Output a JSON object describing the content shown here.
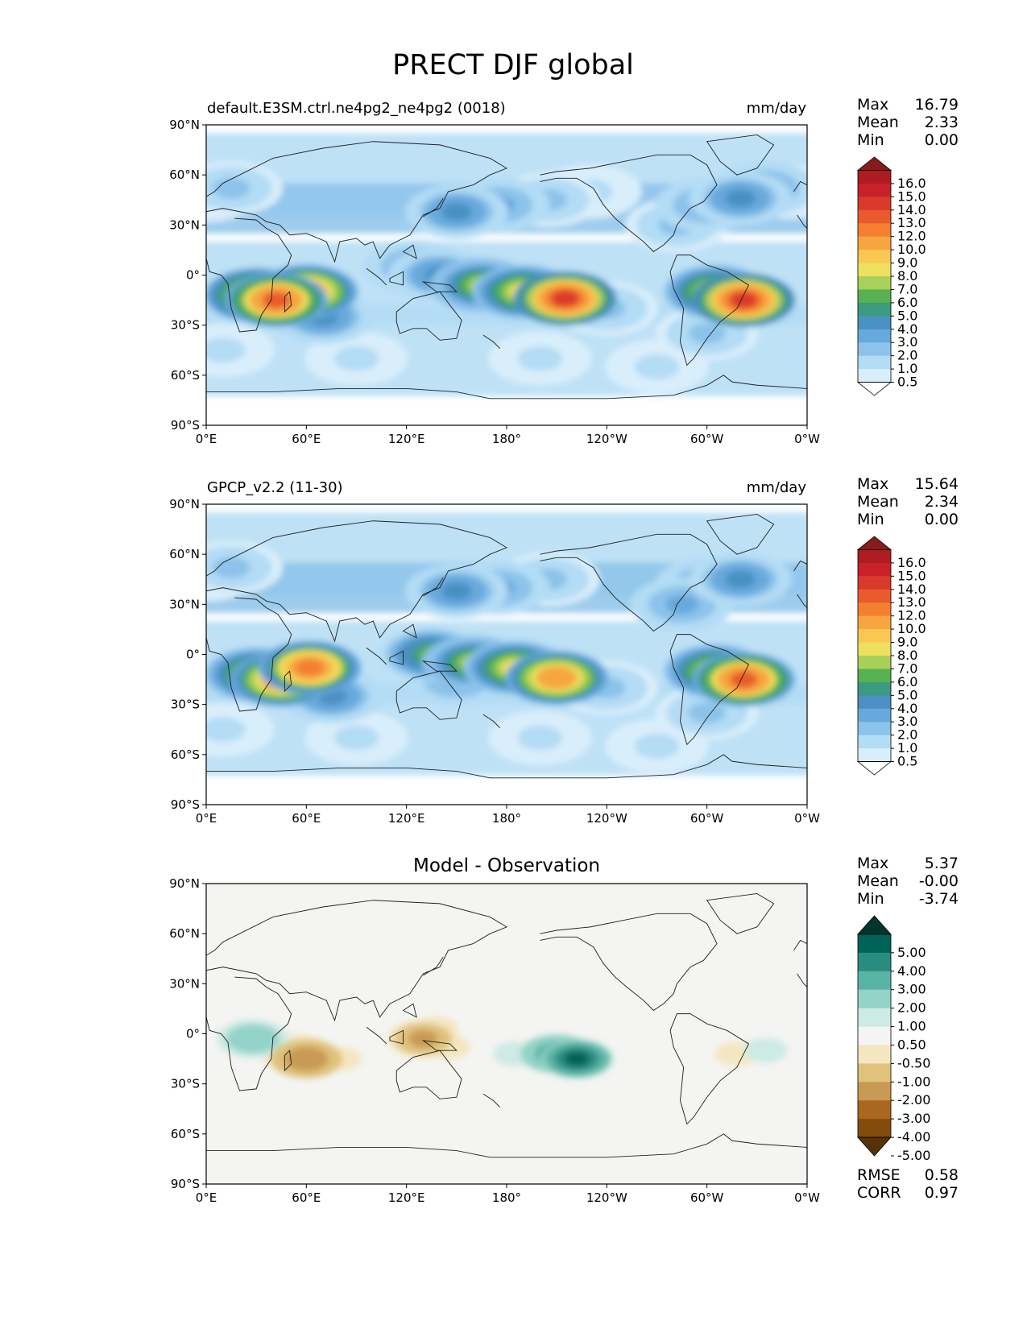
{
  "figure_title": "PRECT DJF global",
  "axes": {
    "lat_ticks": [
      "90°N",
      "60°N",
      "30°N",
      "0°",
      "30°S",
      "60°S",
      "90°S"
    ],
    "lon_ticks": [
      "0°E",
      "60°E",
      "120°E",
      "180°",
      "120°W",
      "60°W",
      "0°W"
    ]
  },
  "panels": [
    {
      "left_title": "default.E3SM.ctrl.ne4pg2_ne4pg2 (0018)",
      "center_title": "",
      "right_title": "mm/day",
      "stats": [
        {
          "label": "Max",
          "value": "16.79"
        },
        {
          "label": "Mean",
          "value": "2.33"
        },
        {
          "label": "Min",
          "value": "0.00"
        }
      ],
      "footer_stats": [],
      "colorbar": {
        "labels": [
          "16.0",
          "15.0",
          "14.0",
          "13.0",
          "12.0",
          "10.0",
          "9.0",
          "8.0",
          "7.0",
          "6.0",
          "5.0",
          "4.0",
          "3.0",
          "2.0",
          "1.0",
          "0.5"
        ],
        "colors": [
          "#8b1a1a",
          "#ad1c20",
          "#c8212a",
          "#da3a2b",
          "#ea5a2c",
          "#f47f30",
          "#f7a541",
          "#f9c853",
          "#ece05e",
          "#a8d05a",
          "#58b251",
          "#3c9a7e",
          "#4a90c2",
          "#67a9dd",
          "#8cc3ea",
          "#b3dcf5",
          "#d9eefb",
          "#ffffff"
        ]
      },
      "blobs": [
        {
          "lon": 0,
          "lat": 48,
          "value": 2
        },
        {
          "lon": 15,
          "lat": 52,
          "value": 3
        },
        {
          "lon": 350,
          "lat": 50,
          "value": 2
        },
        {
          "lon": 300,
          "lat": 42,
          "value": 4
        },
        {
          "lon": 320,
          "lat": 46,
          "value": 5
        },
        {
          "lon": 335,
          "lat": 52,
          "value": 4
        },
        {
          "lon": 282,
          "lat": 30,
          "value": 3
        },
        {
          "lon": 150,
          "lat": 38,
          "value": 5
        },
        {
          "lon": 175,
          "lat": 42,
          "value": 4
        },
        {
          "lon": 205,
          "lat": 45,
          "value": 3
        },
        {
          "lon": 230,
          "lat": 50,
          "value": 2
        },
        {
          "lon": 190,
          "lat": -10,
          "value": 10
        },
        {
          "lon": 215,
          "lat": -14,
          "value": 16
        },
        {
          "lon": 165,
          "lat": -6,
          "value": 8
        },
        {
          "lon": 140,
          "lat": 0,
          "value": 5
        },
        {
          "lon": 125,
          "lat": 5,
          "value": 4
        },
        {
          "lon": 240,
          "lat": -20,
          "value": 3
        },
        {
          "lon": 60,
          "lat": -10,
          "value": 13
        },
        {
          "lon": 42,
          "lat": -15,
          "value": 15
        },
        {
          "lon": 30,
          "lat": -12,
          "value": 12
        },
        {
          "lon": 70,
          "lat": -25,
          "value": 5
        },
        {
          "lon": 322,
          "lat": -15,
          "value": 16
        },
        {
          "lon": 305,
          "lat": -10,
          "value": 10
        },
        {
          "lon": 300,
          "lat": -35,
          "value": 3
        },
        {
          "lon": 90,
          "lat": -50,
          "value": 2
        },
        {
          "lon": 200,
          "lat": -50,
          "value": 2
        },
        {
          "lon": 10,
          "lat": -45,
          "value": 2
        },
        {
          "lon": 270,
          "lat": -55,
          "value": 2
        }
      ]
    },
    {
      "left_title": "GPCP_v2.2 (11-30)",
      "center_title": "",
      "right_title": "mm/day",
      "stats": [
        {
          "label": "Max",
          "value": "15.64"
        },
        {
          "label": "Mean",
          "value": "2.34"
        },
        {
          "label": "Min",
          "value": "0.00"
        }
      ],
      "footer_stats": [],
      "colorbar": {
        "labels": [
          "16.0",
          "15.0",
          "14.0",
          "13.0",
          "12.0",
          "10.0",
          "9.0",
          "8.0",
          "7.0",
          "6.0",
          "5.0",
          "4.0",
          "3.0",
          "2.0",
          "1.0",
          "0.5"
        ],
        "colors": [
          "#8b1a1a",
          "#ad1c20",
          "#c8212a",
          "#da3a2b",
          "#ea5a2c",
          "#f47f30",
          "#f7a541",
          "#f9c853",
          "#ece05e",
          "#a8d05a",
          "#58b251",
          "#3c9a7e",
          "#4a90c2",
          "#67a9dd",
          "#8cc3ea",
          "#b3dcf5",
          "#d9eefb",
          "#ffffff"
        ]
      },
      "blobs": [
        {
          "lon": 0,
          "lat": 48,
          "value": 2
        },
        {
          "lon": 15,
          "lat": 52,
          "value": 3
        },
        {
          "lon": 300,
          "lat": 42,
          "value": 4
        },
        {
          "lon": 320,
          "lat": 45,
          "value": 5
        },
        {
          "lon": 285,
          "lat": 30,
          "value": 4
        },
        {
          "lon": 150,
          "lat": 38,
          "value": 5
        },
        {
          "lon": 175,
          "lat": 40,
          "value": 4
        },
        {
          "lon": 205,
          "lat": 45,
          "value": 3
        },
        {
          "lon": 185,
          "lat": -8,
          "value": 9
        },
        {
          "lon": 210,
          "lat": -14,
          "value": 13
        },
        {
          "lon": 160,
          "lat": -5,
          "value": 8
        },
        {
          "lon": 135,
          "lat": 0,
          "value": 7
        },
        {
          "lon": 150,
          "lat": -15,
          "value": 4
        },
        {
          "lon": 240,
          "lat": -20,
          "value": 3
        },
        {
          "lon": 62,
          "lat": -8,
          "value": 14
        },
        {
          "lon": 45,
          "lat": -15,
          "value": 13
        },
        {
          "lon": 30,
          "lat": -12,
          "value": 10
        },
        {
          "lon": 75,
          "lat": -25,
          "value": 5
        },
        {
          "lon": 322,
          "lat": -15,
          "value": 15
        },
        {
          "lon": 305,
          "lat": -10,
          "value": 9
        },
        {
          "lon": 300,
          "lat": -35,
          "value": 3
        },
        {
          "lon": 90,
          "lat": -50,
          "value": 2
        },
        {
          "lon": 200,
          "lat": -50,
          "value": 2
        },
        {
          "lon": 10,
          "lat": -45,
          "value": 2
        },
        {
          "lon": 270,
          "lat": -55,
          "value": 2
        }
      ]
    },
    {
      "left_title": "",
      "center_title": "Model - Observation",
      "right_title": "",
      "stats": [
        {
          "label": "Max",
          "value": "5.37"
        },
        {
          "label": "Mean",
          "value": "-0.00"
        },
        {
          "label": "Min",
          "value": "-3.74"
        }
      ],
      "footer_stats": [
        {
          "label": "RMSE",
          "value": "0.58"
        },
        {
          "label": "CORR",
          "value": "0.97"
        }
      ],
      "colorbar": {
        "labels": [
          "5.00",
          "4.00",
          "3.00",
          "2.00",
          "1.00",
          "0.50",
          "-0.50",
          "-1.00",
          "-2.00",
          "-3.00",
          "-4.00",
          "-5.00"
        ],
        "colors": [
          "#01362c",
          "#016355",
          "#2a8c80",
          "#5ab4a6",
          "#93d3c8",
          "#cdeae4",
          "#f4f4f2",
          "#f4e6c0",
          "#dfc27c",
          "#c99a55",
          "#a9681e",
          "#844b0f",
          "#573208"
        ]
      },
      "blobs": [
        {
          "lon": 210,
          "lat": -12,
          "value": 3
        },
        {
          "lon": 222,
          "lat": -15,
          "value": 5
        },
        {
          "lon": 185,
          "lat": -12,
          "value": 1
        },
        {
          "lon": 28,
          "lat": -3,
          "value": 2
        },
        {
          "lon": 32,
          "lat": -22,
          "value": 0.7
        },
        {
          "lon": 292,
          "lat": 0,
          "value": 0.7
        },
        {
          "lon": 335,
          "lat": -10,
          "value": 1.2
        },
        {
          "lon": 55,
          "lat": -12,
          "value": -1.5
        },
        {
          "lon": 60,
          "lat": -15,
          "value": -3.2
        },
        {
          "lon": 80,
          "lat": -15,
          "value": -0.8
        },
        {
          "lon": 130,
          "lat": -3,
          "value": -2.5
        },
        {
          "lon": 138,
          "lat": 3,
          "value": -1.2
        },
        {
          "lon": 145,
          "lat": -8,
          "value": -1
        },
        {
          "lon": 318,
          "lat": -12,
          "value": -1
        },
        {
          "lon": 195,
          "lat": 12,
          "value": -0.6
        }
      ]
    }
  ]
}
